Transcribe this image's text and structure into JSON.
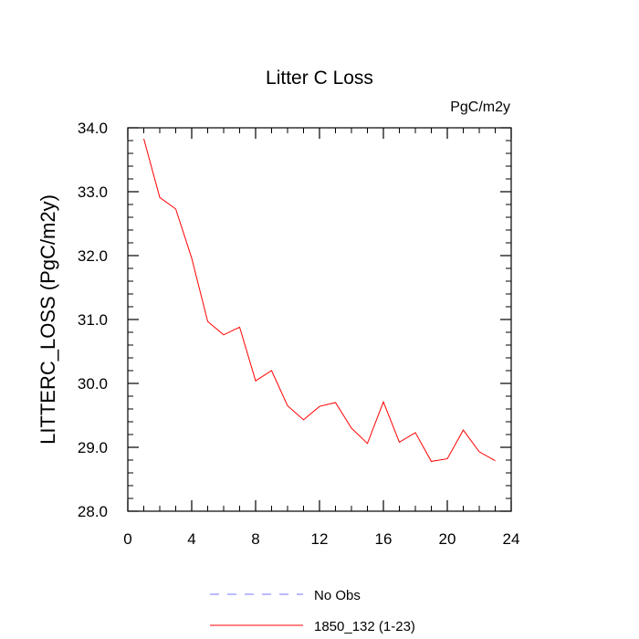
{
  "chart_data": {
    "type": "line",
    "title": "Litter C Loss",
    "units": "PgC/m2y",
    "xlabel": "",
    "ylabel": "LITTERC_LOSS  (PgC/m2y)",
    "xlim": [
      0,
      24
    ],
    "ylim": [
      28.0,
      34.0
    ],
    "x_ticks": [
      "0",
      "4",
      "8",
      "12",
      "16",
      "20",
      "24"
    ],
    "x_tick_values": [
      0,
      4,
      8,
      12,
      16,
      20,
      24
    ],
    "y_ticks": [
      "28.0",
      "29.0",
      "30.0",
      "31.0",
      "32.0",
      "33.0",
      "34.0"
    ],
    "y_tick_values": [
      28,
      29,
      30,
      31,
      32,
      33,
      34
    ],
    "x": [
      1,
      2,
      3,
      4,
      5,
      6,
      7,
      8,
      9,
      10,
      11,
      12,
      13,
      14,
      15,
      16,
      17,
      18,
      19,
      20,
      21,
      22,
      23
    ],
    "series": [
      {
        "name": "1850_132 (1-23)",
        "color": "#ff0000",
        "style": "solid",
        "values": [
          33.83,
          32.91,
          32.73,
          31.96,
          30.97,
          30.76,
          30.88,
          30.04,
          30.2,
          29.65,
          29.43,
          29.64,
          29.7,
          29.3,
          29.06,
          29.71,
          29.08,
          29.23,
          28.78,
          28.82,
          29.27,
          28.93,
          28.79
        ]
      }
    ],
    "legend": [
      {
        "label": "No Obs",
        "color": "#7777ff",
        "style": "dashed"
      },
      {
        "label": "1850_132 (1-23)",
        "color": "#ff0000",
        "style": "solid"
      }
    ],
    "legend_placement": "bottom",
    "grid": false
  }
}
